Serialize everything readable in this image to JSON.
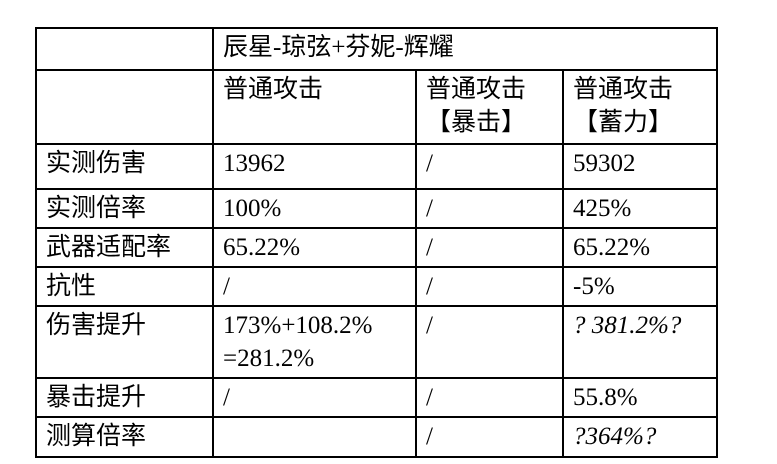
{
  "page": {
    "background_color": "#ffffff",
    "text_color": "#000000",
    "border_color": "#000000"
  },
  "table": {
    "title": "辰星-琼弦+芬妮-辉耀",
    "col_headers": [
      "普通攻击",
      "普通攻击\n【暴击】",
      "普通攻击\n【蓄力】"
    ],
    "rows": [
      {
        "label": "实测伤害",
        "values": [
          "13962",
          "/",
          "59302"
        ]
      },
      {
        "label": "实测倍率",
        "values": [
          "100%",
          "/",
          "425%"
        ]
      },
      {
        "label": "武器适配率",
        "values": [
          "65.22%",
          "/",
          "65.22%"
        ]
      },
      {
        "label": "抗性",
        "values": [
          "/",
          "/",
          "-5%"
        ]
      },
      {
        "label": "伤害提升",
        "values": [
          "173%+108.2%\n=281.2%",
          "/",
          "? 381.2%?"
        ]
      },
      {
        "label": "暴击提升",
        "values": [
          "/",
          "/",
          "55.8%"
        ]
      },
      {
        "label": "测算倍率",
        "values": [
          "",
          "/",
          "?364%?"
        ]
      }
    ]
  }
}
